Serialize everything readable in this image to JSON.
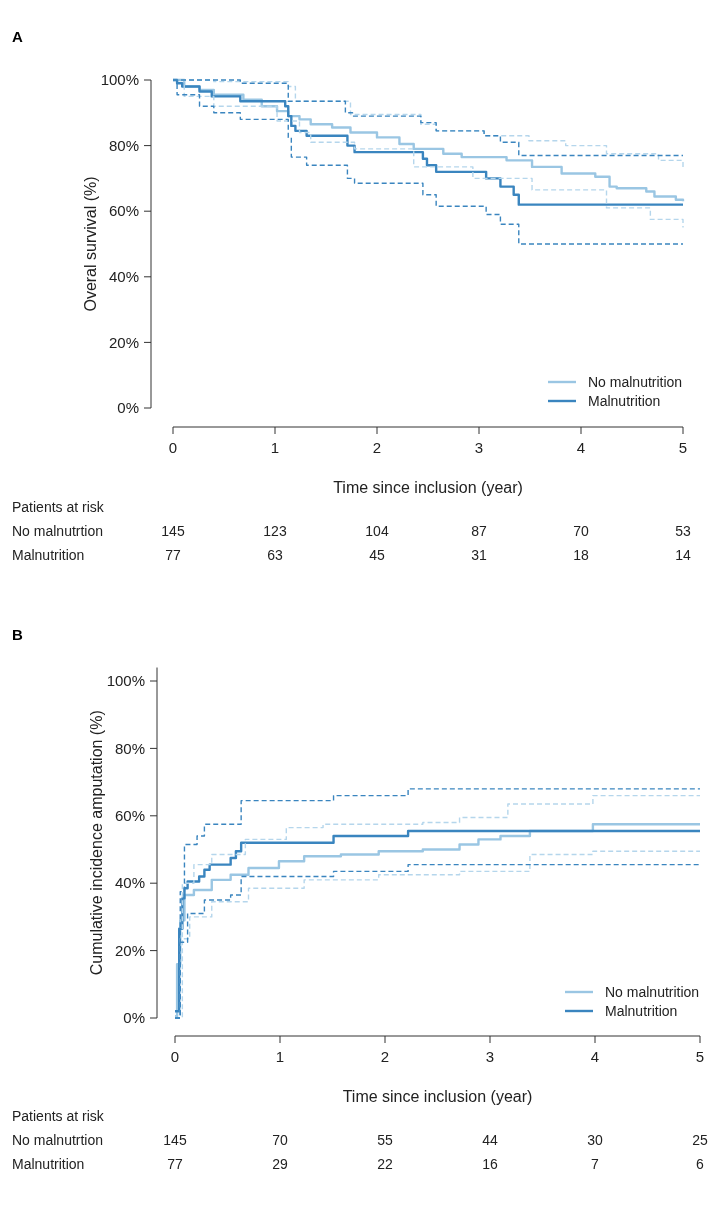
{
  "chart_data": [
    {
      "type": "step",
      "title": "A",
      "xlabel": "Time since inclusion (year)",
      "ylabel": "Overal survival (%)",
      "xlim": [
        0,
        5
      ],
      "xticks": [
        0,
        1,
        2,
        3,
        4,
        5
      ],
      "ylim": [
        0,
        100
      ],
      "yticks": [
        {
          "value": 0,
          "label": "0%"
        },
        {
          "value": 20,
          "label": "20%"
        },
        {
          "value": 40,
          "label": "40%"
        },
        {
          "value": 60,
          "label": "60%"
        },
        {
          "value": 80,
          "label": "80%"
        },
        {
          "value": 100,
          "label": "100%"
        }
      ],
      "legend": "bottom right",
      "grid": false,
      "series": [
        {
          "name": "No malnutrition",
          "color": "#9ac6e3",
          "line_style": "solid",
          "x": [
            0,
            0.11,
            0.26,
            0.4,
            0.69,
            0.87,
            1.02,
            1.13,
            1.24,
            1.35,
            1.56,
            1.74,
            2.0,
            2.22,
            2.36,
            2.65,
            2.83,
            3.27,
            3.52,
            3.81,
            4.14,
            4.28,
            4.35,
            4.64,
            4.72,
            4.93,
            5
          ],
          "values": [
            100,
            98,
            97,
            95.5,
            94,
            92,
            90.5,
            89,
            88,
            86.5,
            85.5,
            84,
            82.5,
            80.5,
            79,
            77.5,
            76.5,
            75.5,
            73.5,
            71.5,
            70.5,
            67.5,
            67,
            66,
            64.5,
            63.5,
            63
          ]
        },
        {
          "name": "Malnutrition",
          "color": "#3a85bf",
          "line_style": "solid",
          "x": [
            0,
            0.04,
            0.09,
            0.26,
            0.38,
            0.66,
            1.1,
            1.13,
            1.16,
            1.2,
            1.31,
            1.71,
            1.78,
            2.45,
            2.49,
            2.58,
            3.07,
            3.21,
            3.34,
            3.39,
            5
          ],
          "values": [
            100,
            99,
            98,
            96.5,
            95,
            93.5,
            92,
            89,
            86,
            84.5,
            83,
            80,
            78,
            76,
            74,
            72,
            70,
            67.5,
            65,
            62,
            62
          ]
        },
        {
          "color": "#b5d6ec",
          "line_style": "dashed",
          "x": [
            0,
            0.4,
            1.13,
            1.2,
            1.74,
            2.43,
            2.58,
            3.05,
            3.49,
            3.85,
            4.25,
            4.76,
            5
          ],
          "values": [
            100,
            99.5,
            98,
            93.5,
            89.5,
            86.5,
            84.5,
            83,
            81.5,
            80,
            77.5,
            75.5,
            73
          ]
        },
        {
          "color": "#b5d6ec",
          "line_style": "dashed",
          "x": [
            0,
            0.11,
            0.4,
            1.02,
            1.24,
            1.35,
            1.78,
            2.36,
            2.94,
            3.52,
            4.25,
            4.68,
            5
          ],
          "values": [
            100,
            95,
            92,
            87.5,
            84,
            81,
            79,
            73.5,
            70,
            66.5,
            61,
            57.5,
            55
          ]
        },
        {
          "color": "#3a85bf",
          "line_style": "dashed",
          "x": [
            0,
            0.66,
            1.13,
            1.69,
            1.76,
            2.43,
            2.58,
            3.05,
            3.21,
            3.39,
            5
          ],
          "values": [
            100,
            99,
            93.5,
            90,
            89,
            87,
            84.5,
            83,
            81,
            77,
            77
          ]
        },
        {
          "color": "#3a85bf",
          "line_style": "dashed",
          "x": [
            0,
            0.04,
            0.26,
            0.4,
            0.66,
            1.13,
            1.16,
            1.31,
            1.71,
            1.78,
            2.45,
            2.58,
            3.07,
            3.21,
            3.39,
            5
          ],
          "values": [
            100,
            95.5,
            92,
            90,
            88,
            82.5,
            76.5,
            74,
            70,
            68.5,
            65,
            61.5,
            59,
            56,
            50,
            50
          ]
        }
      ],
      "annotations": [
        "Patients at risk",
        "No malnutrtion",
        "145",
        "123",
        "104",
        "87",
        "70",
        "53",
        "Malnutrition",
        "77",
        "63",
        "45",
        "31",
        "18",
        "14"
      ]
    },
    {
      "type": "step",
      "title": "B",
      "xlabel": "Time since inclusion (year)",
      "ylabel": "Cumulative incidence amputation (%)",
      "xlim": [
        0,
        5
      ],
      "xticks": [
        0,
        1,
        2,
        3,
        4,
        5
      ],
      "ylim": [
        0,
        104
      ],
      "yticks": [
        {
          "value": 0,
          "label": "0%"
        },
        {
          "value": 20,
          "label": "20%"
        },
        {
          "value": 40,
          "label": "40%"
        },
        {
          "value": 60,
          "label": "60%"
        },
        {
          "value": 80,
          "label": "80%"
        },
        {
          "value": 100,
          "label": "100%"
        }
      ],
      "legend": "bottom right",
      "grid": false,
      "series": [
        {
          "name": "No malnutrition",
          "color": "#9ac6e3",
          "line_style": "solid",
          "x": [
            0,
            0.02,
            0.05,
            0.09,
            0.18,
            0.35,
            0.53,
            0.7,
            0.99,
            1.23,
            1.58,
            1.94,
            2.36,
            2.71,
            2.89,
            3.1,
            3.38,
            3.98,
            5
          ],
          "values": [
            0.5,
            16,
            29,
            36.5,
            38,
            41,
            42.5,
            44.5,
            46.5,
            48,
            48.5,
            49.5,
            50,
            51.5,
            53,
            54,
            55.5,
            57.5,
            57.5
          ]
        },
        {
          "name": "Malnutrition",
          "color": "#3a85bf",
          "line_style": "solid",
          "x": [
            0,
            0.04,
            0.07,
            0.09,
            0.12,
            0.23,
            0.28,
            0.33,
            0.53,
            0.58,
            0.63,
            1.51,
            2.22,
            5
          ],
          "values": [
            2,
            26.5,
            35.5,
            38.5,
            40.5,
            42,
            44,
            45.5,
            47.5,
            49.5,
            52,
            54,
            55.5,
            55.5
          ]
        },
        {
          "color": "#b5d6ec",
          "line_style": "dashed",
          "x": [
            0,
            0.07,
            0.18,
            0.35,
            0.67,
            1.06,
            1.41,
            2.36,
            2.71,
            3.17,
            3.98,
            5
          ],
          "values": [
            0,
            40,
            45.5,
            48.5,
            53,
            56.5,
            57.5,
            58,
            59.5,
            63.5,
            66,
            66
          ]
        },
        {
          "color": "#b5d6ec",
          "line_style": "dashed",
          "x": [
            0,
            0.05,
            0.14,
            0.35,
            0.7,
            1.23,
            1.94,
            2.71,
            3.38,
            3.98,
            5
          ],
          "values": [
            0,
            23.5,
            30,
            34.5,
            38.5,
            41,
            42.5,
            43.5,
            48.5,
            49.5,
            49.5
          ]
        },
        {
          "color": "#3a85bf",
          "line_style": "dashed",
          "x": [
            0,
            0.05,
            0.09,
            0.21,
            0.28,
            0.63,
            1.51,
            2.22,
            5
          ],
          "values": [
            0,
            37.5,
            51.5,
            54,
            57.5,
            64.5,
            66,
            68,
            68
          ]
        },
        {
          "color": "#3a85bf",
          "line_style": "dashed",
          "x": [
            0,
            0.05,
            0.12,
            0.28,
            0.53,
            0.63,
            1.51,
            2.22,
            5
          ],
          "values": [
            0,
            22.5,
            31,
            35,
            36.5,
            42,
            43.5,
            45.5,
            45.5
          ]
        }
      ],
      "annotations": [
        "Patients at risk",
        "No malnutrtion",
        "145",
        "70",
        "55",
        "44",
        "30",
        "25",
        "Malnutrition",
        "77",
        "29",
        "22",
        "16",
        "7",
        "6"
      ]
    }
  ]
}
